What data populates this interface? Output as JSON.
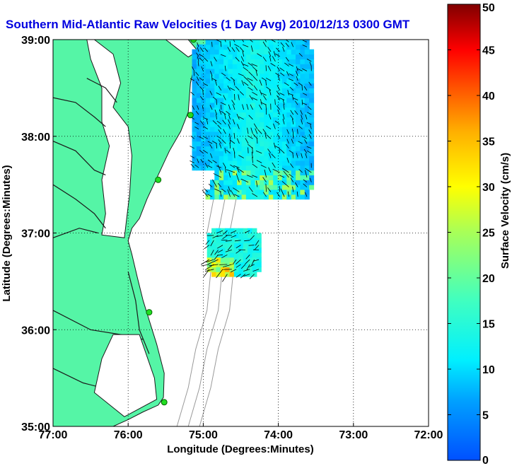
{
  "chart_data": {
    "type": "heatmap",
    "title": "Southern Mid-Atlantic Raw Velocities (1 Day Avg) 2010/12/13 0300 GMT",
    "xlabel": "Longitude (Degrees:Minutes)",
    "ylabel": "Latitude (Degrees:Minutes)",
    "xlim": [
      -77,
      -72
    ],
    "ylim": [
      35,
      39
    ],
    "x_ticks": [
      {
        "value": -77,
        "label": "77:00"
      },
      {
        "value": -76,
        "label": "76:00"
      },
      {
        "value": -75,
        "label": "75:00"
      },
      {
        "value": -74,
        "label": "74:00"
      },
      {
        "value": -73,
        "label": "73:00"
      },
      {
        "value": -72,
        "label": "72:00"
      }
    ],
    "y_ticks": [
      {
        "value": 35,
        "label": "35:00"
      },
      {
        "value": 36,
        "label": "36:00"
      },
      {
        "value": 37,
        "label": "37:00"
      },
      {
        "value": 38,
        "label": "38:00"
      },
      {
        "value": 39,
        "label": "39:00"
      }
    ],
    "grid": "dotted",
    "colorbar": {
      "label": "Surface Velocity (cm/s)",
      "range": [
        0,
        50
      ],
      "ticks": [
        0,
        5,
        10,
        15,
        20,
        25,
        30,
        35,
        40,
        45,
        50
      ],
      "colormap": "jet"
    },
    "colors": {
      "land": "#55f5a6",
      "coast": "#1a1a1a",
      "title": "#0000e0",
      "bathymetry": "#999999",
      "station": "#22dd22"
    },
    "stations": [
      {
        "lon": -75.13,
        "lat": 39.0
      },
      {
        "lon": -75.17,
        "lat": 38.22
      },
      {
        "lon": -75.6,
        "lat": 37.55
      },
      {
        "lon": -75.72,
        "lat": 36.18
      },
      {
        "lon": -75.52,
        "lat": 35.25
      }
    ],
    "velocity_regions": [
      {
        "name": "north",
        "lon": [
          -75.15,
          -73.55
        ],
        "lat": [
          37.35,
          38.95
        ],
        "speed_cm_s": [
          4,
          28
        ]
      },
      {
        "name": "south",
        "lon": [
          -74.95,
          -74.25
        ],
        "lat": [
          36.55,
          37.0
        ],
        "speed_cm_s": [
          5,
          38
        ]
      }
    ]
  }
}
